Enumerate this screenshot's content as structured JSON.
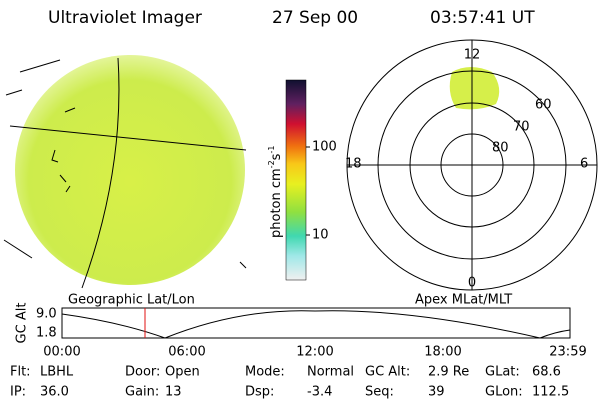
{
  "header": {
    "title": "Ultraviolet Imager",
    "date": "27 Sep 00",
    "time": "03:57:41 UT"
  },
  "colorbar": {
    "label": [
      "photon cm",
      "-2",
      "s",
      "-1"
    ],
    "ticks": [
      "100",
      "10"
    ]
  },
  "polar": {
    "mlt": [
      "12",
      "18",
      "6",
      "0"
    ],
    "mlat": [
      "60",
      "70",
      "80"
    ]
  },
  "captions": {
    "left": "Geographic Lat/Lon",
    "right": "Apex MLat/MLT"
  },
  "altitude": {
    "label": "GC Alt",
    "yticks": [
      "9.0",
      "1.8"
    ],
    "xticks": [
      "00:00",
      "06:00",
      "12:00",
      "18:00",
      "23:59"
    ]
  },
  "info": [
    [
      {
        "label": "Flt:",
        "value": "LBHL"
      },
      {
        "label": "Door:",
        "value": "Open"
      },
      {
        "label": "Mode:",
        "value": "Normal"
      },
      {
        "label": "GC Alt:",
        "value": "2.9 Re"
      },
      {
        "label": "GLat:",
        "value": "68.6"
      }
    ],
    [
      {
        "label": "IP:",
        "value": "36.0"
      },
      {
        "label": "Gain:",
        "value": "13"
      },
      {
        "label": "Dsp:",
        "value": "-3.4"
      },
      {
        "label": "Seq:",
        "value": "39"
      },
      {
        "label": "GLon:",
        "value": "112.5"
      }
    ]
  ]
}
